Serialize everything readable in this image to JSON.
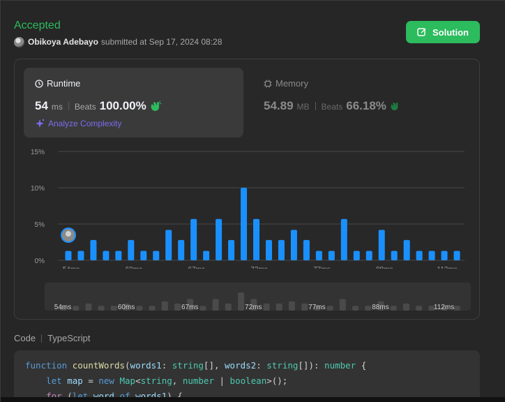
{
  "header": {
    "status": "Accepted",
    "user": "Obikoya Adebayo",
    "submitted_text": "submitted at Sep 17, 2024 08:28",
    "solution_label": "Solution"
  },
  "runtime": {
    "title": "Runtime",
    "value": "54",
    "unit": "ms",
    "beats_label": "Beats",
    "beats": "100.00%",
    "analyze_label": "Analyze Complexity"
  },
  "memory": {
    "title": "Memory",
    "value": "54.89",
    "unit": "MB",
    "beats_label": "Beats",
    "beats": "66.18%"
  },
  "chart_data": {
    "type": "bar",
    "ylim": [
      0,
      15
    ],
    "y_ticks": [
      "0%",
      "5%",
      "10%",
      "15%"
    ],
    "x_tick_labels": [
      "54ms",
      "60ms",
      "67ms",
      "72ms",
      "77ms",
      "88ms",
      "112ms"
    ],
    "values": [
      1.3,
      1.3,
      2.8,
      1.3,
      1.3,
      2.8,
      1.3,
      1.3,
      4.2,
      2.8,
      5.7,
      1.3,
      5.7,
      2.8,
      10.0,
      5.7,
      2.8,
      2.8,
      4.2,
      2.8,
      1.3,
      1.3,
      5.7,
      1.3,
      1.3,
      4.2,
      1.3,
      2.8,
      1.3,
      1.3,
      1.3,
      1.3
    ],
    "bar_color": "#1a90ff",
    "highlight_index": 0
  },
  "minimap": {
    "labels": [
      "54ms",
      "60ms",
      "67ms",
      "72ms",
      "77ms",
      "88ms",
      "112ms"
    ]
  },
  "code": {
    "tab": "Code",
    "language": "TypeScript"
  },
  "colors": {
    "accent_green": "#2cbb5d",
    "bar_blue": "#1a90ff",
    "analyze_purple": "#7c6cf0"
  }
}
